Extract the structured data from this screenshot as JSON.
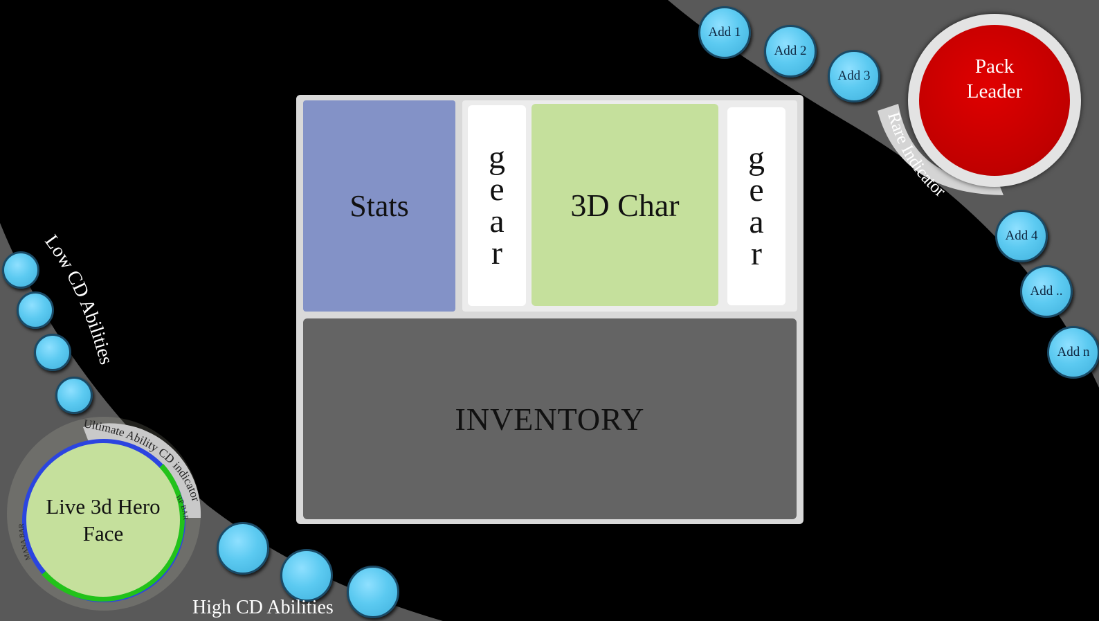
{
  "panel": {
    "stats_label": "Stats",
    "gear_left": [
      "g",
      "e",
      "a",
      "r"
    ],
    "char_label": "3D Char",
    "gear_right": [
      "g",
      "e",
      "a",
      "r"
    ],
    "inventory_label": "INVENTORY"
  },
  "adds": {
    "top": [
      "Add 1",
      "Add 2",
      "Add 3"
    ],
    "right": [
      "Add 4",
      "Add ..",
      "Add n"
    ]
  },
  "pack_leader": {
    "label_line1": "Pack",
    "label_line2": "Leader",
    "rare_indicator_label": "Rare Indicator"
  },
  "hero": {
    "face_line1": "Live 3d Hero",
    "face_line2": "Face",
    "ultimate_label": "Ultimate Ability CD indicator",
    "hp_label": "HP BAR",
    "mana_label": "MANA BAR"
  },
  "abilities": {
    "low_cd_label": "Low CD Abilities",
    "high_cd_label": "High CD Abilities"
  },
  "colors": {
    "band": "#595959",
    "stats": "#8392c7",
    "char": "#c5e09c",
    "inventory": "#646464",
    "bubble": "#5ccaf1",
    "pack_leader": "#c00000",
    "mana": "#2b45e0",
    "hp": "#22c21a"
  }
}
